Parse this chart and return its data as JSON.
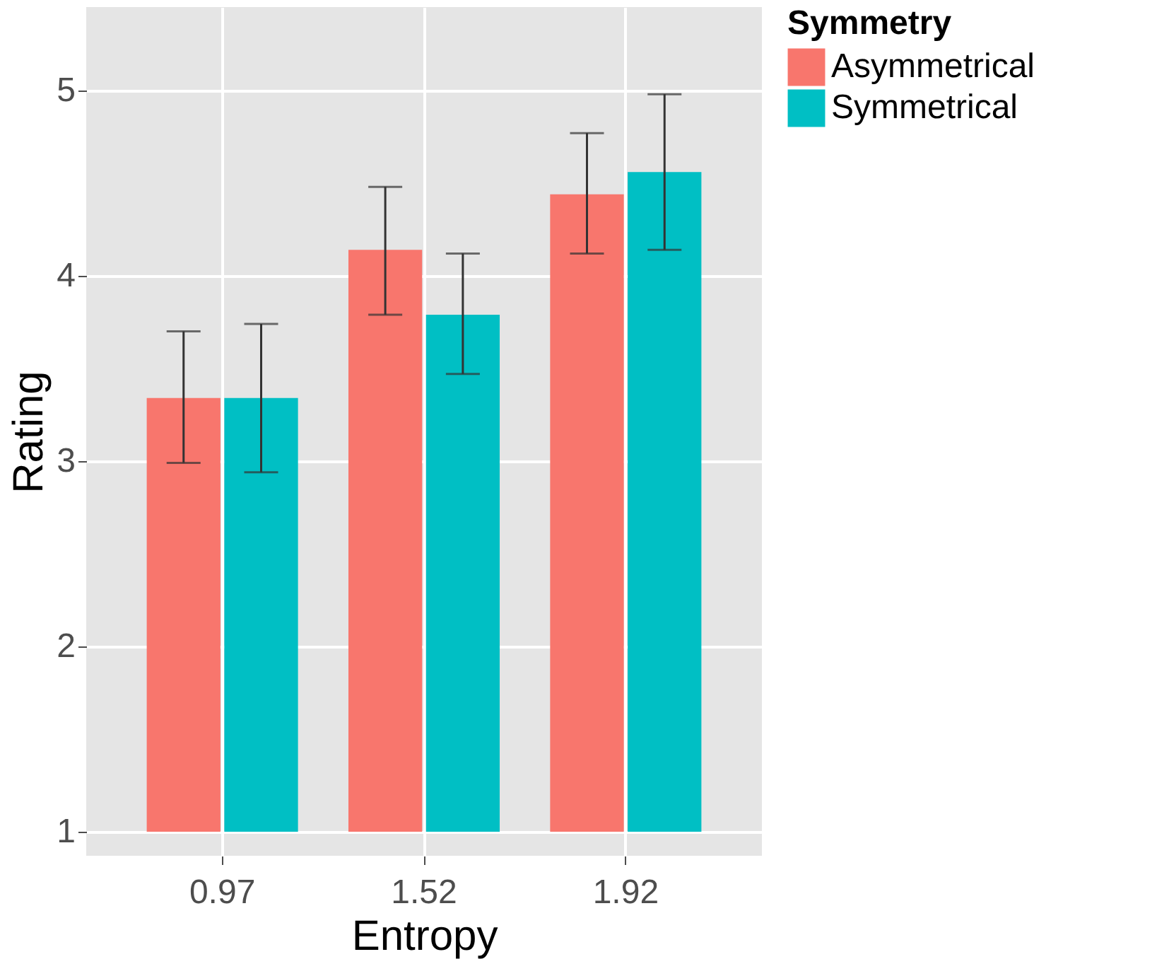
{
  "chart_data": {
    "type": "bar",
    "xlabel": "Entropy",
    "ylabel": "Rating",
    "legend_title": "Symmetry",
    "categories": [
      "0.97",
      "1.52",
      "1.92"
    ],
    "series": [
      {
        "name": "Asymmetrical",
        "color": "#f8766d",
        "base": [
          1,
          1,
          1
        ],
        "values": [
          2.34,
          3.14,
          3.44
        ],
        "errors": [
          [
            2.99,
            3.7
          ],
          [
            3.79,
            4.48
          ],
          [
            4.12,
            4.77
          ]
        ]
      },
      {
        "name": "Symmetrical",
        "color": "#00bfc4",
        "base": [
          1,
          1,
          1
        ],
        "values": [
          2.34,
          2.79,
          3.56
        ],
        "errors": [
          [
            2.94,
            3.74
          ],
          [
            3.47,
            4.12
          ],
          [
            4.14,
            4.98
          ]
        ]
      }
    ],
    "ylim": [
      0.87,
      5.45
    ],
    "yticks": [
      1,
      2,
      3,
      4,
      5
    ],
    "grid": true,
    "legend": "top right"
  }
}
